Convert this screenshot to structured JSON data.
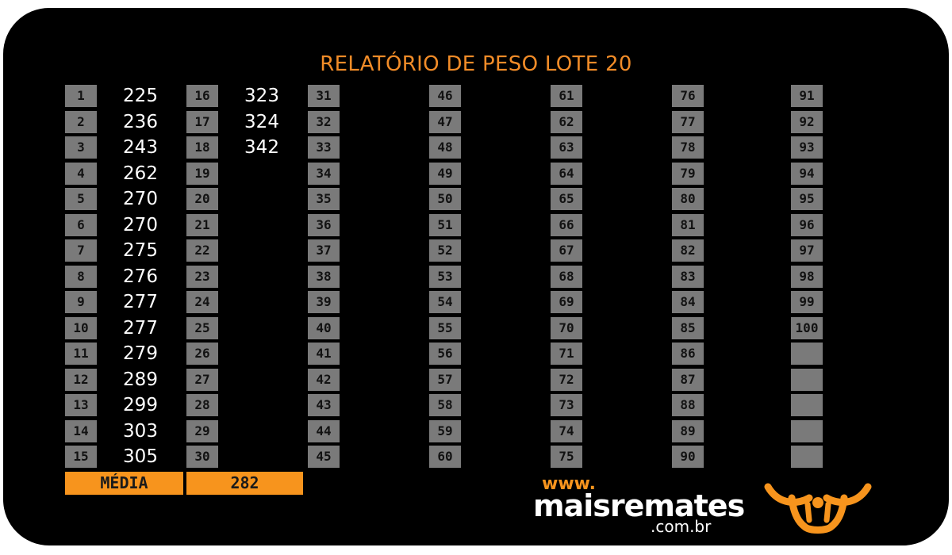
{
  "title": "RELATÓRIO DE PESO LOTE 20",
  "weights": {
    "1": "225",
    "2": "236",
    "3": "243",
    "4": "262",
    "5": "270",
    "6": "270",
    "7": "275",
    "8": "276",
    "9": "277",
    "10": "277",
    "11": "279",
    "12": "289",
    "13": "299",
    "14": "303",
    "15": "305",
    "16": "323",
    "17": "324",
    "18": "342"
  },
  "summary": {
    "label": "MÉDIA",
    "value": "282"
  },
  "brand": {
    "www": "www.",
    "name": "maisremates",
    "tld": ".com.br"
  },
  "colors": {
    "accent": "#F7941D",
    "background": "#000000",
    "cell": "#7a7a7a"
  },
  "icons": {
    "logo": "bull-head-icon"
  }
}
